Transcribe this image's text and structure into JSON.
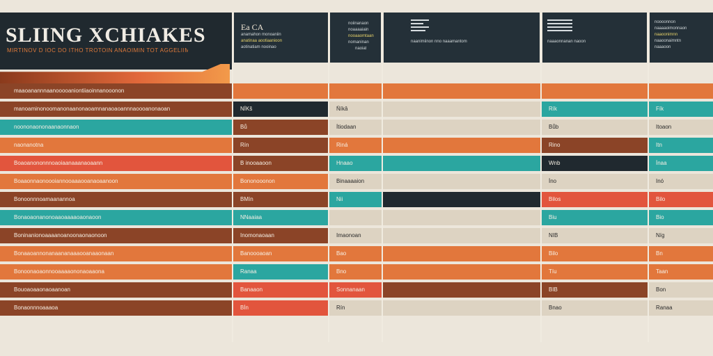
{
  "header": {
    "title": "SLIING XCHIAKES",
    "subtitle": "MIRTINOV D IOC DO ITHO TROTOIN ANAOIMIN TOT AGGELIIM",
    "col2_code": "Ea CA",
    "col2_text": [
      "anamahon monoaniin",
      "anatinaa aootiaanioon",
      "aotinatiam nooinao",
      "anatiin noaania"
    ],
    "col3_text": [
      "noiinanaon",
      "noaaaaiain",
      "nooaaomtaan",
      "nomaninan",
      "naoiat"
    ],
    "col4_text": "naanimiinon nno naaamantom",
    "col5_text": "naaaonnanan naoon",
    "col6_text": [
      "noooonnon",
      "naaaaoimonnaon",
      "naaoonimnn",
      "naaoonaimntn",
      "naaaoon",
      "naoaann"
    ]
  },
  "rows": [
    {
      "label": "maaoanannnaanooooaniontiiaoinnanooonon",
      "c2": "",
      "c3": "",
      "c5": "",
      "c6": ""
    },
    {
      "label": "manoaminonoomanonaanonaoamnanaoaoannnaoooanonaoan",
      "c2": "NÍKŝ",
      "c3": "Ñíkâ",
      "c5": "Rík",
      "c6": "Fík"
    },
    {
      "label": "noononaononaanaonnaon",
      "c2": "Bů",
      "c3": "Ítiodaan",
      "c5": "Bůb",
      "c6": "Itoaon"
    },
    {
      "label": "naonanotna",
      "c2": "Rín",
      "c3": "Riná",
      "c5": "Rino",
      "c6": "Itn"
    },
    {
      "label": "Boaoanononnnoaoiaanaaanaoaann",
      "c2": "B inooaaoon",
      "c3": "Hnaao",
      "c5": "Wnb",
      "c6": "Ínaa"
    },
    {
      "label": "Boaaonnaonoooiannooaaaooanaoaanoon",
      "c2": "Bononooonon",
      "c3": "Binaaaaion",
      "c5": "Íno",
      "c6": "Inó"
    },
    {
      "label": "Bonoonnnoamaanannoa",
      "c2": "BMín",
      "c3": "Nii",
      "c5": "Bilos",
      "c6": "Bilo"
    },
    {
      "label": "Bonaoaonanonoaaoaaaaoaonaoon",
      "c2": "NNaaiaa",
      "c3": "",
      "c5": "Biu",
      "c6": "Bio"
    },
    {
      "label": "Boninanionoaaaanoanoonaonaonoon",
      "c2": "Inomonaoaan",
      "c3": "Imaonoan",
      "c5": "NIB",
      "c6": "Níg"
    },
    {
      "label": "Bonaaoannonanaananaaaooanaaonaan",
      "c2": "Banoooaoan",
      "c3": "Bao",
      "c5": "Bilo",
      "c6": "Bn"
    },
    {
      "label": "Bonoonaoaonnooaaaaononaoaaona",
      "c2": "Ranaa",
      "c3": "Bno",
      "c5": "Tíu",
      "c6": "Taan"
    },
    {
      "label": "Bouoaoaaonaoaanoan",
      "c2": "Banaaon",
      "c3": "Sonnanaan",
      "c5": "BIB",
      "c6": "Bon"
    },
    {
      "label": "Bonaonnnoaaaoa",
      "c2": "BÍn",
      "c3": "Rín",
      "c5": "Bnao",
      "c6": "Ranaa"
    }
  ],
  "colors": {
    "dark": "#20292f",
    "orange": "#e2773c",
    "teal": "#2ba6a0",
    "rust": "#8b4427",
    "cream": "#ddd3c2",
    "coral": "#e2553d"
  }
}
